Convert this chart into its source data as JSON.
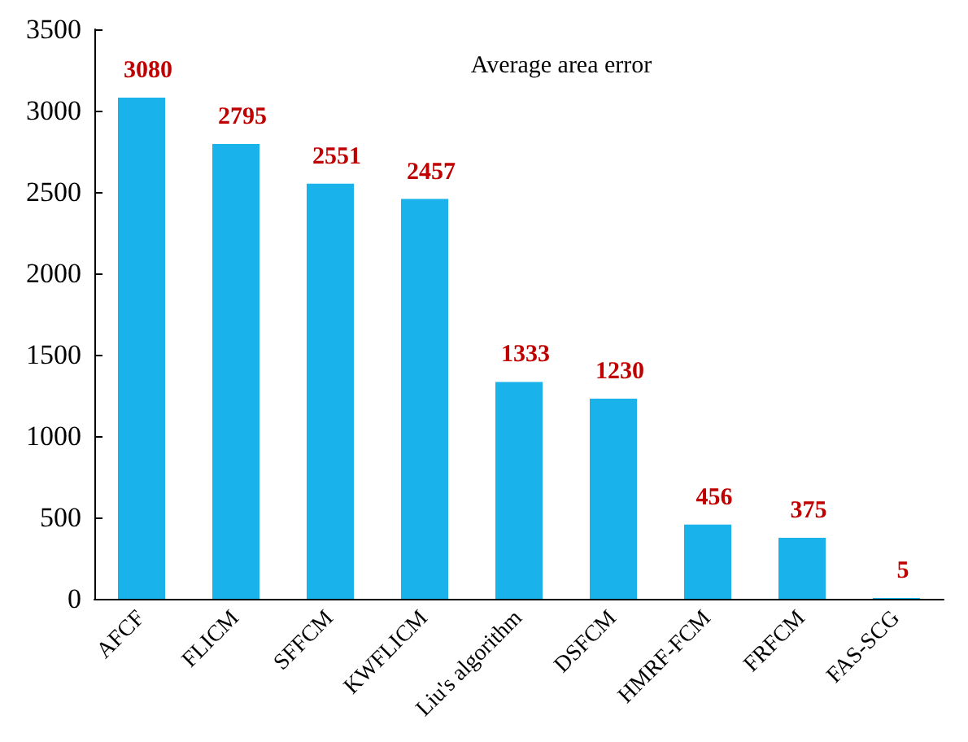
{
  "chart_data": {
    "type": "bar",
    "title": "Average area error",
    "categories": [
      "AFCF",
      "FLICM",
      "SFFCM",
      "KWFLICM",
      "Liu's algorithm",
      "DSFCM",
      "HMRF-FCM",
      "FRFCM",
      "FAS-SCG"
    ],
    "values": [
      3080,
      2795,
      2551,
      2457,
      1333,
      1230,
      456,
      375,
      5
    ],
    "color": "#1ab2ea",
    "ylim": [
      0,
      3500
    ],
    "yticks": [
      0,
      500,
      1000,
      1500,
      2000,
      2500,
      3000,
      3500
    ],
    "data_labels": true,
    "grid": false
  }
}
